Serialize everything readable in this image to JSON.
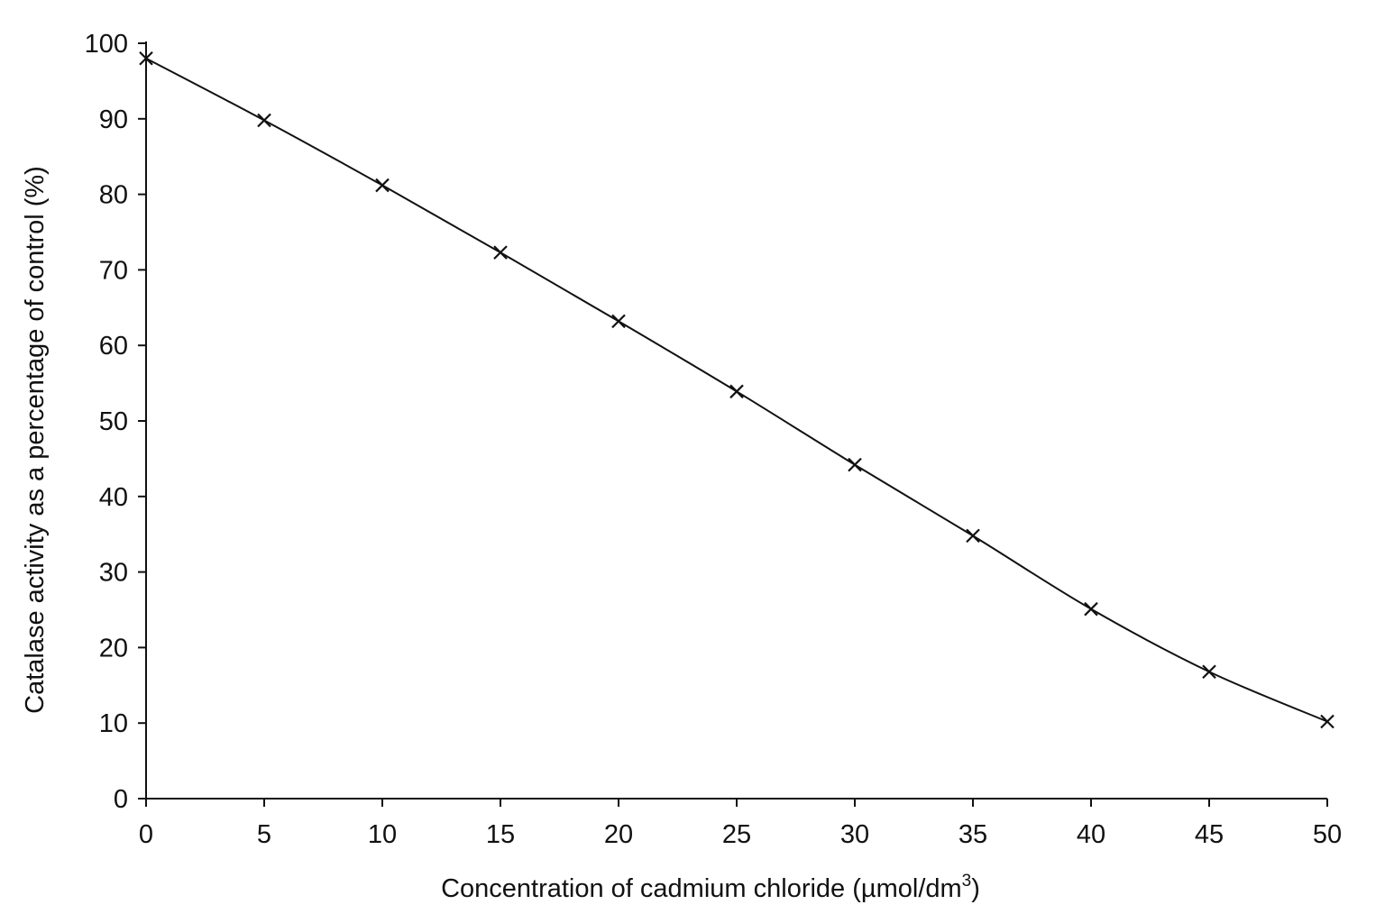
{
  "chart_data": {
    "type": "line",
    "title": "",
    "xlabel_main": "Concentration of cadmium chloride (µmol/dm",
    "xlabel_sup": "3",
    "xlabel_close": ")",
    "ylabel": "Catalase activity as a percentage of control (%)",
    "xlim": [
      0,
      50
    ],
    "ylim": [
      0,
      100
    ],
    "x_ticks": [
      "0",
      "5",
      "10",
      "15",
      "20",
      "25",
      "30",
      "35",
      "40",
      "45",
      "50"
    ],
    "y_ticks": [
      "0",
      "10",
      "20",
      "30",
      "40",
      "50",
      "60",
      "70",
      "80",
      "90",
      "100"
    ],
    "grid": false,
    "legend": "none",
    "marker": "x",
    "series": [
      {
        "x": [
          0,
          5,
          10,
          15,
          20,
          25,
          30,
          35,
          40,
          45,
          50
        ],
        "y": [
          98,
          89.8,
          81.2,
          72.3,
          63.2,
          53.9,
          44.2,
          34.8,
          25.1,
          16.8,
          10.2
        ]
      }
    ]
  }
}
